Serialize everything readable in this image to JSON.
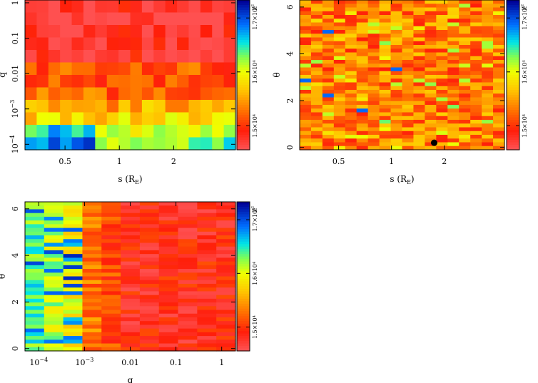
{
  "chart_data": [
    {
      "id": "q_vs_s",
      "type": "heatmap",
      "title": "",
      "xlabel": "s (R_E)",
      "xlabel_parts": [
        "s (R",
        "E",
        ")"
      ],
      "ylabel": "q",
      "xscale": "log",
      "yscale": "log",
      "xlim": [
        0.3,
        4.4
      ],
      "ylim": [
        7e-05,
        1.2
      ],
      "xticks": [
        {
          "v": 0.5,
          "label": "0.5"
        },
        {
          "v": 1,
          "label": "1"
        },
        {
          "v": 2,
          "label": "2"
        }
      ],
      "yticks": [
        {
          "v": 1,
          "label": "1"
        },
        {
          "v": 0.1,
          "label": "0.1"
        },
        {
          "v": 0.01,
          "label": "0.01"
        },
        {
          "v": 0.001,
          "label": "10",
          "exp": "−3"
        },
        {
          "v": 0.0001,
          "label": "10",
          "exp": "−4"
        }
      ],
      "grid": {
        "nx": 18,
        "ny": 12
      },
      "colorbar": {
        "label": "χ²",
        "ticks": [
          "1.7×10⁴",
          "1.6×10⁴",
          "1.5×10⁴"
        ]
      },
      "marker": null
    },
    {
      "id": "theta_vs_s",
      "type": "heatmap",
      "title": "",
      "xlabel": "s (R_E)",
      "xlabel_parts": [
        "s (R",
        "E",
        ")"
      ],
      "ylabel": "θ",
      "xscale": "log",
      "yscale": "linear",
      "xlim": [
        0.3,
        4.4
      ],
      "ylim": [
        -0.1,
        6.3
      ],
      "xticks": [
        {
          "v": 0.5,
          "label": "0.5"
        },
        {
          "v": 1,
          "label": "1"
        },
        {
          "v": 2,
          "label": "2"
        }
      ],
      "yticks": [
        {
          "v": 0,
          "label": "0"
        },
        {
          "v": 2,
          "label": "2"
        },
        {
          "v": 4,
          "label": "4"
        },
        {
          "v": 6,
          "label": "6"
        }
      ],
      "grid": {
        "nx": 18,
        "ny": 40
      },
      "colorbar": {
        "label": "χ²",
        "ticks": [
          "1.7×10⁴",
          "1.6×10⁴",
          "1.5×10⁴"
        ]
      },
      "marker": {
        "s": 1.75,
        "theta": 0.2
      }
    },
    {
      "id": "theta_vs_q",
      "type": "heatmap",
      "title": "",
      "xlabel": "q",
      "ylabel": "θ",
      "xscale": "log",
      "yscale": "linear",
      "xlim": [
        5e-05,
        2.0
      ],
      "ylim": [
        -0.1,
        6.3
      ],
      "xticks": [
        {
          "v": 0.0001,
          "label": "10",
          "exp": "−4"
        },
        {
          "v": 0.001,
          "label": "10",
          "exp": "−3"
        },
        {
          "v": 0.01,
          "label": "0.01"
        },
        {
          "v": 0.1,
          "label": "0.1"
        },
        {
          "v": 1,
          "label": "1"
        }
      ],
      "yticks": [
        {
          "v": 0,
          "label": "0"
        },
        {
          "v": 2,
          "label": "2"
        },
        {
          "v": 4,
          "label": "4"
        },
        {
          "v": 6,
          "label": "6"
        }
      ],
      "grid": {
        "nx": 11,
        "ny": 40
      },
      "colorbar": {
        "label": "χ²",
        "ticks": [
          "1.7×10⁴",
          "1.6×10⁴",
          "1.5×10⁴"
        ]
      },
      "marker": null
    }
  ]
}
